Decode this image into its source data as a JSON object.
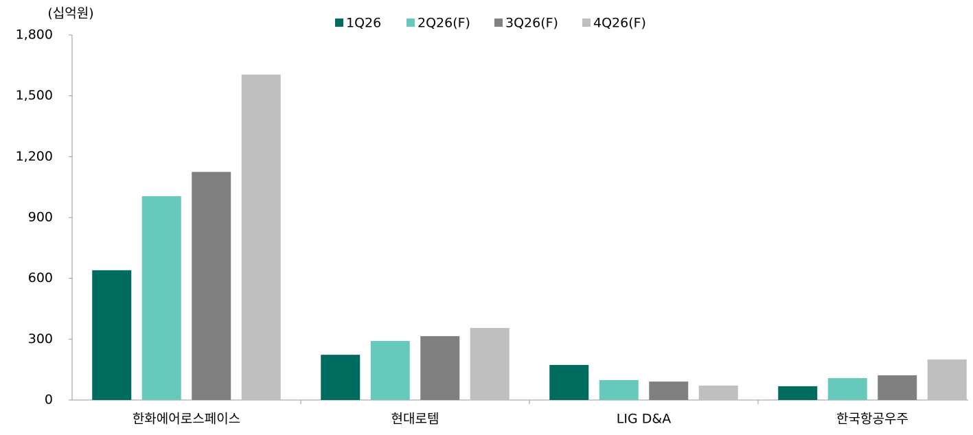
{
  "chart_data": {
    "type": "bar",
    "y_label": "(십억원)",
    "categories": [
      "한화에어로스페이스",
      "현대로템",
      "LIG D&A",
      "한국항공우주"
    ],
    "series": [
      {
        "name": "1Q26",
        "color": "#006b5f",
        "values": [
          640,
          223,
          173,
          68
        ]
      },
      {
        "name": "2Q26(F)",
        "color": "#66c9bc",
        "values": [
          1005,
          291,
          98,
          108
        ]
      },
      {
        "name": "3Q26(F)",
        "color": "#808080",
        "values": [
          1125,
          315,
          91,
          122
        ]
      },
      {
        "name": "4Q26(F)",
        "color": "#bfbfbf",
        "values": [
          1605,
          355,
          71,
          200
        ]
      }
    ],
    "ylim": [
      0,
      1800
    ],
    "yticks": [
      0,
      300,
      600,
      900,
      {
        "value": 1200,
        "label": "1,200"
      },
      {
        "value": 1500,
        "label": "1,500"
      },
      {
        "value": 1800,
        "label": "1,800"
      }
    ],
    "legend": "top",
    "grid": false
  }
}
